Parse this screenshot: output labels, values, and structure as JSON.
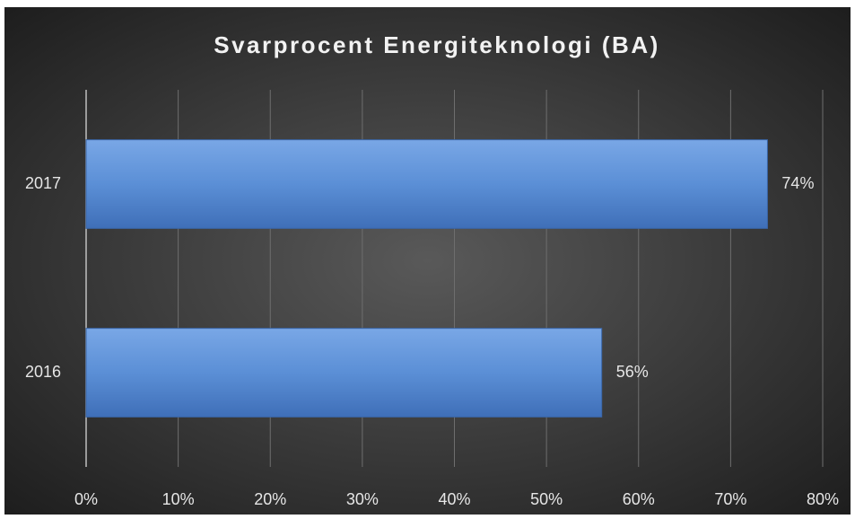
{
  "chart_data": {
    "type": "hbar",
    "title": "Svarprocent Energiteknologi (BA)",
    "categories": [
      "2016",
      "2017"
    ],
    "values": [
      56,
      74
    ],
    "value_labels": [
      "56%",
      "74%"
    ],
    "color": "#5b8fd6",
    "xlim": [
      0,
      80
    ],
    "xticks": [
      {
        "value": 0,
        "label": "0%"
      },
      {
        "value": 10,
        "label": "10%"
      },
      {
        "value": 20,
        "label": "20%"
      },
      {
        "value": 30,
        "label": "30%"
      },
      {
        "value": 40,
        "label": "40%"
      },
      {
        "value": 50,
        "label": "50%"
      },
      {
        "value": 60,
        "label": "60%"
      },
      {
        "value": 70,
        "label": "70%"
      },
      {
        "value": 80,
        "label": "80%"
      }
    ],
    "grid": true
  }
}
